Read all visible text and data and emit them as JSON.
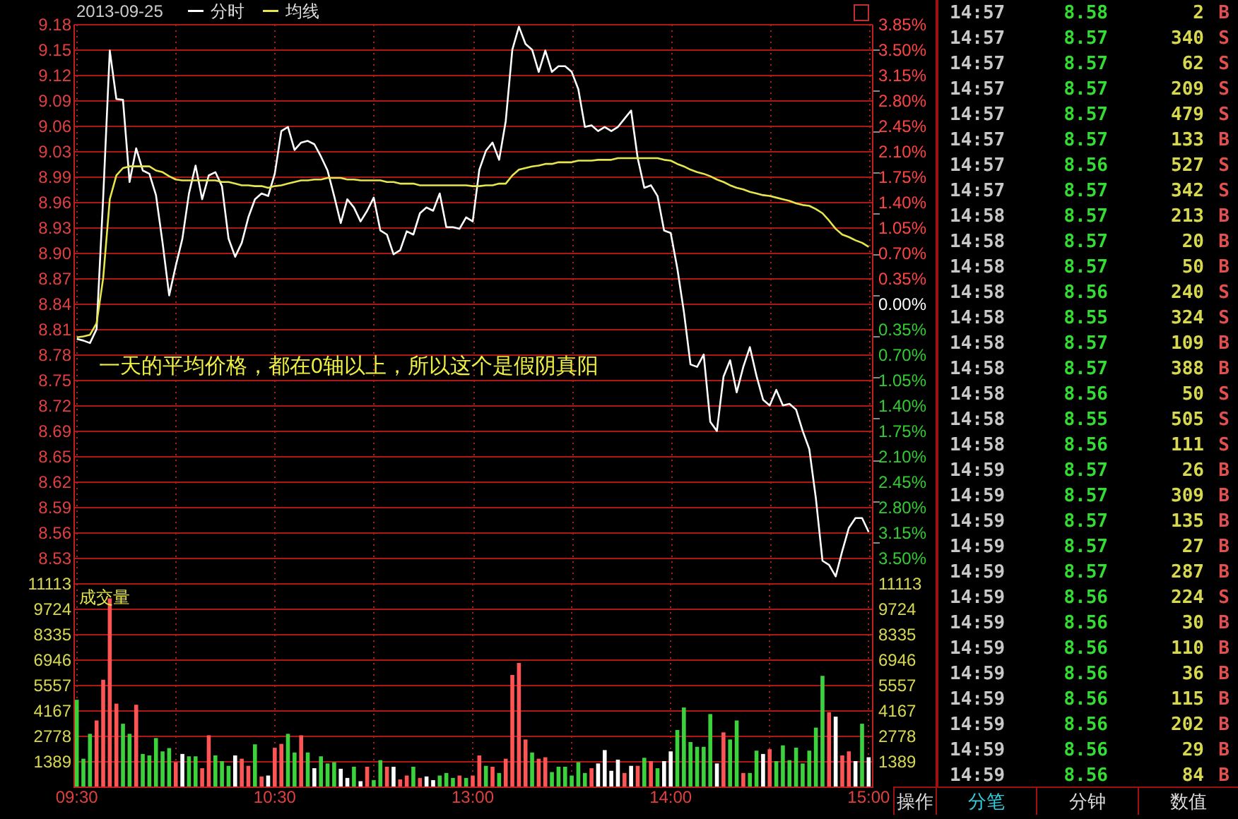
{
  "chart_data": [
    {
      "type": "line",
      "title": "2013-09-25",
      "categories": [
        null,
        null,
        null,
        null,
        null,
        null,
        null,
        null,
        null,
        null,
        null,
        null,
        null,
        null,
        null,
        null,
        null,
        null,
        null,
        null,
        null,
        null,
        null,
        null,
        null,
        null,
        null,
        null,
        null,
        null,
        null,
        null,
        null,
        null,
        null,
        null,
        null,
        null,
        null,
        null,
        null,
        null,
        null,
        null,
        null,
        null,
        null,
        null,
        null,
        null,
        null,
        null,
        null,
        null,
        null,
        null,
        null,
        null,
        null,
        null,
        null,
        null,
        null,
        null,
        null,
        null,
        null,
        null,
        null,
        null,
        null,
        null,
        null,
        null,
        null,
        null,
        null,
        null,
        null,
        null,
        null,
        null,
        null,
        null,
        null,
        null,
        null,
        null,
        null,
        null,
        null,
        null,
        null,
        null,
        null,
        null,
        null,
        null,
        null,
        null,
        null,
        null,
        null,
        null,
        null,
        null,
        null,
        null,
        null,
        null,
        null,
        null,
        null,
        null,
        null,
        null,
        null,
        null,
        null,
        null,
        null
      ],
      "series": [
        {
          "name": "分时",
          "color": "#ffffff",
          "values": [
            8.797,
            8.795,
            8.792,
            8.809,
            8.969,
            9.148,
            9.089,
            9.088,
            8.988,
            9.029,
            9.002,
            8.998,
            8.972,
            8.914,
            8.85,
            8.886,
            8.919,
            8.974,
            9.008,
            8.967,
            8.996,
            9.0,
            8.983,
            8.919,
            8.897,
            8.914,
            8.945,
            8.967,
            8.974,
            8.971,
            8.998,
            9.05,
            9.055,
            9.027,
            9.036,
            9.038,
            9.034,
            9.019,
            9.002,
            8.971,
            8.938,
            8.967,
            8.957,
            8.94,
            8.953,
            8.969,
            8.929,
            8.924,
            8.9,
            8.905,
            8.928,
            8.924,
            8.95,
            8.957,
            8.953,
            8.974,
            8.933,
            8.933,
            8.931,
            8.945,
            8.94,
            9.003,
            9.026,
            9.036,
            9.015,
            9.062,
            9.149,
            9.177,
            9.156,
            9.149,
            9.122,
            9.148,
            9.122,
            9.129,
            9.129,
            9.122,
            9.101,
            9.055,
            9.057,
            9.05,
            9.055,
            9.05,
            9.055,
            9.065,
            9.075,
            9.017,
            8.981,
            8.984,
            8.971,
            8.929,
            8.926,
            8.883,
            8.83,
            8.766,
            8.763,
            8.778,
            8.696,
            8.685,
            8.751,
            8.771,
            8.732,
            8.763,
            8.787,
            8.752,
            8.723,
            8.716,
            8.735,
            8.716,
            8.718,
            8.711,
            8.685,
            8.663,
            8.603,
            8.527,
            8.522,
            8.508,
            8.539,
            8.567,
            8.579,
            8.579,
            8.562
          ]
        },
        {
          "name": "均线",
          "color": "#e6e64c",
          "values": [
            8.799,
            8.8,
            8.802,
            8.816,
            8.871,
            8.967,
            8.996,
            9.005,
            9.007,
            9.007,
            9.007,
            9.007,
            9.002,
            9.0,
            8.995,
            8.991,
            8.99,
            8.99,
            8.99,
            8.99,
            8.99,
            8.99,
            8.988,
            8.988,
            8.986,
            8.984,
            8.984,
            8.983,
            8.983,
            8.981,
            8.983,
            8.984,
            8.986,
            8.988,
            8.99,
            8.99,
            8.991,
            8.991,
            8.993,
            8.993,
            8.993,
            8.991,
            8.991,
            8.99,
            8.99,
            8.99,
            8.99,
            8.988,
            8.988,
            8.986,
            8.986,
            8.986,
            8.984,
            8.984,
            8.984,
            8.984,
            8.984,
            8.984,
            8.984,
            8.984,
            8.983,
            8.983,
            8.984,
            8.984,
            8.986,
            8.986,
            8.996,
            9.003,
            9.005,
            9.007,
            9.008,
            9.01,
            9.01,
            9.012,
            9.012,
            9.012,
            9.014,
            9.014,
            9.014,
            9.015,
            9.015,
            9.015,
            9.017,
            9.017,
            9.017,
            9.017,
            9.017,
            9.017,
            9.017,
            9.015,
            9.014,
            9.01,
            9.007,
            9.003,
            9.0,
            8.998,
            8.995,
            8.991,
            8.988,
            8.984,
            8.981,
            8.979,
            8.976,
            8.974,
            8.972,
            8.971,
            8.969,
            8.967,
            8.965,
            8.962,
            8.96,
            8.959,
            8.955,
            8.95,
            8.941,
            8.931,
            8.924,
            8.921,
            8.917,
            8.914,
            8.909
          ]
        }
      ],
      "ylim": [
        8.4997,
        9.1803
      ],
      "yticks": [
        {
          "value": 8.5306,
          "label": "8.53"
        },
        {
          "value": 8.5615,
          "label": "8.56"
        },
        {
          "value": 8.5925,
          "label": "8.59"
        },
        {
          "value": 8.6234,
          "label": "8.62"
        },
        {
          "value": 8.6544,
          "label": "8.65"
        },
        {
          "value": 8.6853,
          "label": "8.69"
        },
        {
          "value": 8.7162,
          "label": "8.72"
        },
        {
          "value": 8.7472,
          "label": "8.75"
        },
        {
          "value": 8.7781,
          "label": "8.78"
        },
        {
          "value": 8.8091,
          "label": "8.81"
        },
        8.84,
        {
          "value": 8.8709,
          "label": "8.87"
        },
        {
          "value": 8.9019,
          "label": "8.90"
        },
        {
          "value": 8.9328,
          "label": "8.93"
        },
        {
          "value": 8.9638,
          "label": "8.96"
        },
        {
          "value": 8.9947,
          "label": "8.99"
        },
        {
          "value": 9.0256,
          "label": "9.03"
        },
        {
          "value": 9.0566,
          "label": "9.06"
        },
        {
          "value": 9.0875,
          "label": "9.09"
        },
        {
          "value": 9.1185,
          "label": "9.12"
        },
        {
          "value": 9.1494,
          "label": "9.15"
        },
        {
          "value": 9.1803,
          "label": "9.18"
        }
      ],
      "y2lim": [
        -3.85,
        3.85
      ],
      "y2ticks": [
        {
          "value": -3.5,
          "label": "3.50%"
        },
        {
          "value": -3.15,
          "label": "3.15%"
        },
        {
          "value": -2.8,
          "label": "2.80%"
        },
        {
          "value": -2.45,
          "label": "2.45%"
        },
        {
          "value": -2.1,
          "label": "2.10%"
        },
        {
          "value": -1.75,
          "label": "1.75%"
        },
        {
          "value": -1.4,
          "label": "1.40%"
        },
        {
          "value": -1.05,
          "label": "1.05%"
        },
        {
          "value": -0.7,
          "label": "0.70%"
        },
        {
          "value": -0.35,
          "label": "0.35%"
        },
        {
          "value": 0,
          "label": "0.00%"
        },
        {
          "value": 0.35,
          "label": "0.35%"
        },
        {
          "value": 0.7,
          "label": "0.70%"
        },
        {
          "value": 1.05,
          "label": "1.05%"
        },
        {
          "value": 1.4,
          "label": "1.40%"
        },
        {
          "value": 1.75,
          "label": "1.75%"
        },
        {
          "value": 2.1,
          "label": "2.10%"
        },
        {
          "value": 2.45,
          "label": "2.45%"
        },
        {
          "value": 2.8,
          "label": "2.80%"
        },
        {
          "value": 3.15,
          "label": "3.15%"
        },
        {
          "value": 3.5,
          "label": "3.50%"
        },
        {
          "value": 3.85,
          "label": "3.85%"
        }
      ],
      "grid": true,
      "legend": "top left",
      "tick_labels": "y",
      "annotations": [
        "一天的平均价格，都在0轴以上，所以这个是假阴真阳"
      ]
    },
    {
      "type": "bar",
      "title": "成交量",
      "categories": [
        "09:30",
        null,
        null,
        null,
        null,
        null,
        null,
        null,
        null,
        null,
        null,
        null,
        null,
        null,
        null,
        null,
        null,
        null,
        null,
        null,
        null,
        null,
        null,
        null,
        null,
        null,
        null,
        null,
        null,
        null,
        "10:30",
        null,
        null,
        null,
        null,
        null,
        null,
        null,
        null,
        null,
        null,
        null,
        null,
        null,
        null,
        null,
        null,
        null,
        null,
        null,
        null,
        null,
        null,
        null,
        null,
        null,
        null,
        null,
        null,
        null,
        "13:00",
        null,
        null,
        null,
        null,
        null,
        null,
        null,
        null,
        null,
        null,
        null,
        null,
        null,
        null,
        null,
        null,
        null,
        null,
        null,
        null,
        null,
        null,
        null,
        null,
        null,
        null,
        null,
        null,
        null,
        "14:00",
        null,
        null,
        null,
        null,
        null,
        null,
        null,
        null,
        null,
        null,
        null,
        null,
        null,
        null,
        null,
        null,
        null,
        null,
        null,
        null,
        null,
        null,
        null,
        null,
        null,
        null,
        null,
        null,
        null,
        "15:00"
      ],
      "values": [
        4740,
        1520,
        2880,
        3610,
        5840,
        10280,
        4530,
        3430,
        2880,
        4470,
        1780,
        1700,
        2650,
        1920,
        2100,
        1330,
        1780,
        1650,
        1650,
        1000,
        2800,
        1700,
        1390,
        1130,
        1700,
        1520,
        1130,
        2310,
        550,
        600,
        2120,
        2330,
        2880,
        1860,
        2800,
        1860,
        1000,
        1650,
        1260,
        1330,
        970,
        470,
        1080,
        290,
        1080,
        350,
        1440,
        1080,
        1080,
        390,
        600,
        1080,
        470,
        550,
        350,
        600,
        740,
        470,
        600,
        470,
        600,
        1700,
        1130,
        1080,
        740,
        1520,
        6100,
        6750,
        2570,
        1860,
        1520,
        1600,
        790,
        1080,
        1080,
        600,
        1330,
        740,
        1000,
        1260,
        1990,
        860,
        1470,
        740,
        1130,
        1130,
        1570,
        1390,
        1000,
        1390,
        1920,
        3090,
        4320,
        2430,
        2170,
        2170,
        3960,
        1260,
        2960,
        2570,
        3610,
        740,
        740,
        1960,
        1780,
        2040,
        1390,
        2250,
        1440,
        2120,
        1260,
        1960,
        3220,
        6050,
        4060,
        3820,
        1700,
        1920,
        1390,
        3430,
        1600
      ],
      "colors": [
        "#3cd23c",
        "#3cd23c",
        "#3cd23c",
        "#ff5454",
        "#ff5454",
        "#ff5454",
        "#ff5454",
        "#3cd23c",
        "#3cd23c",
        "#ff5454",
        "#3cd23c",
        "#3cd23c",
        "#3cd23c",
        "#3cd23c",
        "#3cd23c",
        "#ff5454",
        "#ffffff",
        "#3cd23c",
        "#3cd23c",
        "#ff5454",
        "#ff5454",
        "#3cd23c",
        "#3cd23c",
        "#3cd23c",
        "#ffffff",
        "#ff5454",
        "#ff5454",
        "#3cd23c",
        "#ff5454",
        "#ffffff",
        "#ff5454",
        "#ff5454",
        "#3cd23c",
        "#3cd23c",
        "#ff5454",
        "#3cd23c",
        "#ffffff",
        "#3cd23c",
        "#3cd23c",
        "#3cd23c",
        "#ffffff",
        "#ffffff",
        "#3cd23c",
        "#ffffff",
        "#ff5454",
        "#3cd23c",
        "#3cd23c",
        "#ff5454",
        "#ffffff",
        "#ff5454",
        "#ff5454",
        "#3cd23c",
        "#ff5454",
        "#ffffff",
        "#ffffff",
        "#3cd23c",
        "#3cd23c",
        "#3cd23c",
        "#ff5454",
        "#3cd23c",
        "#ff5454",
        "#ff5454",
        "#3cd23c",
        "#ff5454",
        "#3cd23c",
        "#ff5454",
        "#ff5454",
        "#ff5454",
        "#ff5454",
        "#3cd23c",
        "#ff5454",
        "#ff5454",
        "#3cd23c",
        "#3cd23c",
        "#3cd23c",
        "#3cd23c",
        "#3cd23c",
        "#3cd23c",
        "#ff5454",
        "#ffffff",
        "#ffffff",
        "#ffffff",
        "#ffffff",
        "#ff5454",
        "#ffffff",
        "#ff5454",
        "#3cd23c",
        "#ff5454",
        "#3cd23c",
        "#ffffff",
        "#ffffff",
        "#3cd23c",
        "#3cd23c",
        "#3cd23c",
        "#3cd23c",
        "#3cd23c",
        "#3cd23c",
        "#ffffff",
        "#ff5454",
        "#3cd23c",
        "#3cd23c",
        "#ff5454",
        "#3cd23c",
        "#3cd23c",
        "#ffffff",
        "#ff5454",
        "#3cd23c",
        "#3cd23c",
        "#3cd23c",
        "#3cd23c",
        "#3cd23c",
        "#3cd23c",
        "#3cd23c",
        "#3cd23c",
        "#ff5454",
        "#ffffff",
        "#ff5454",
        "#ff5454",
        "#ffffff",
        "#3cd23c",
        "#ffffff"
      ],
      "ylim": [
        0,
        11113
      ],
      "yticks": [
        1389,
        2778,
        4167,
        5557,
        6946,
        8335,
        9724,
        11113
      ],
      "y2lim": [
        0,
        11113
      ],
      "y2ticks": [
        1389,
        2778,
        4167,
        5557,
        6946,
        8335,
        9724,
        11113
      ],
      "grid": true
    },
    {
      "type": "other",
      "annotations": [
        "14:57",
        "8.58",
        "2",
        "B",
        "14:57",
        "8.57",
        "340",
        "S",
        "14:57",
        "8.57",
        "62",
        "S",
        "14:57",
        "8.57",
        "209",
        "S",
        "14:57",
        "8.57",
        "479",
        "S",
        "14:57",
        "8.57",
        "133",
        "B",
        "14:57",
        "8.56",
        "527",
        "S",
        "14:57",
        "8.57",
        "342",
        "S",
        "14:58",
        "8.57",
        "213",
        "B",
        "14:58",
        "8.57",
        "20",
        "B",
        "14:58",
        "8.57",
        "50",
        "B",
        "14:58",
        "8.56",
        "240",
        "S",
        "14:58",
        "8.55",
        "324",
        "S",
        "14:58",
        "8.57",
        "109",
        "B",
        "14:58",
        "8.57",
        "388",
        "B",
        "14:58",
        "8.56",
        "50",
        "S",
        "14:58",
        "8.55",
        "505",
        "S",
        "14:58",
        "8.56",
        "111",
        "S",
        "14:59",
        "8.57",
        "26",
        "B",
        "14:59",
        "8.57",
        "309",
        "B",
        "14:59",
        "8.57",
        "135",
        "B",
        "14:59",
        "8.57",
        "27",
        "B",
        "14:59",
        "8.57",
        "287",
        "B",
        "14:59",
        "8.56",
        "224",
        "S",
        "14:59",
        "8.56",
        "30",
        "B",
        "14:59",
        "8.56",
        "110",
        "B",
        "14:59",
        "8.56",
        "36",
        "B",
        "14:59",
        "8.56",
        "115",
        "B",
        "14:59",
        "8.56",
        "202",
        "B",
        "14:59",
        "8.56",
        "29",
        "B",
        "14:59",
        "8.56",
        "84",
        "B"
      ]
    },
    {
      "type": "other",
      "annotations": [
        "操作",
        "分笔",
        "分钟",
        "数值"
      ]
    }
  ]
}
